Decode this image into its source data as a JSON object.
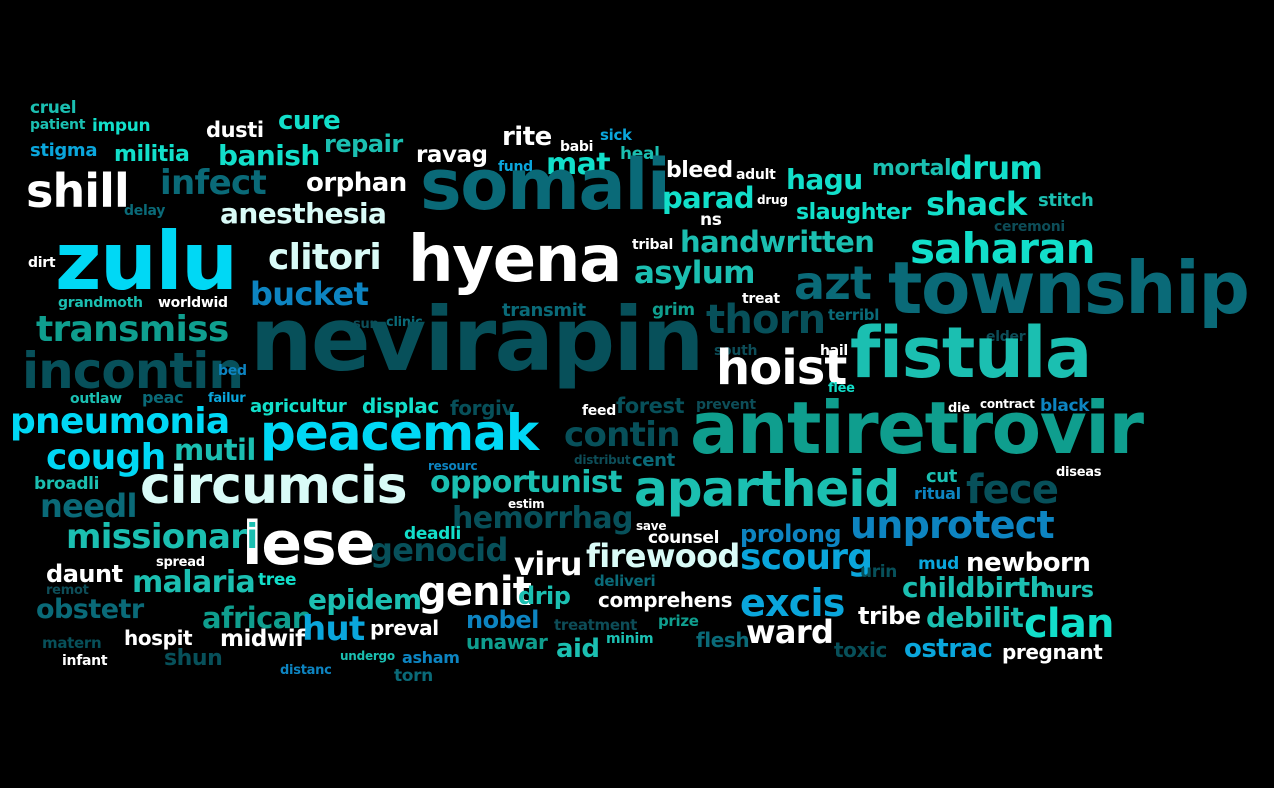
{
  "palette": {
    "background": "#000000",
    "white": "#ffffff",
    "pale": "#d9fbf7",
    "cyan": "#00d8f5",
    "sky": "#0aa6dc",
    "blue": "#0d84c1",
    "aqua": "#12dfca",
    "teal": "#1bbfb1",
    "seafoam": "#0f9e8e",
    "slate": "#0a6a78",
    "deep": "#07505a",
    "dim": "#0d4d58"
  },
  "words": [
    {
      "text": "cruel",
      "color": "teal"
    },
    {
      "text": "patient",
      "color": "teal"
    },
    {
      "text": "impun",
      "color": "aqua"
    },
    {
      "text": "stigma",
      "color": "sky"
    },
    {
      "text": "militia",
      "color": "aqua"
    },
    {
      "text": "dusti",
      "color": "white"
    },
    {
      "text": "cure",
      "color": "aqua"
    },
    {
      "text": "banish",
      "color": "aqua"
    },
    {
      "text": "repair",
      "color": "teal"
    },
    {
      "text": "ravag",
      "color": "white"
    },
    {
      "text": "rite",
      "color": "white"
    },
    {
      "text": "babi",
      "color": "white"
    },
    {
      "text": "sick",
      "color": "sky"
    },
    {
      "text": "fund",
      "color": "sky"
    },
    {
      "text": "mat",
      "color": "aqua"
    },
    {
      "text": "heal",
      "color": "teal"
    },
    {
      "text": "shill",
      "color": "white"
    },
    {
      "text": "delay",
      "color": "slate"
    },
    {
      "text": "infect",
      "color": "slate"
    },
    {
      "text": "orphan",
      "color": "white"
    },
    {
      "text": "somali",
      "color": "slate"
    },
    {
      "text": "bleed",
      "color": "white"
    },
    {
      "text": "adult",
      "color": "white"
    },
    {
      "text": "drug",
      "color": "white"
    },
    {
      "text": "hagu",
      "color": "aqua"
    },
    {
      "text": "mortal",
      "color": "teal"
    },
    {
      "text": "drum",
      "color": "aqua"
    },
    {
      "text": "parad",
      "color": "aqua"
    },
    {
      "text": "ns",
      "color": "white"
    },
    {
      "text": "slaughter",
      "color": "aqua"
    },
    {
      "text": "shack",
      "color": "aqua"
    },
    {
      "text": "stitch",
      "color": "teal"
    },
    {
      "text": "ceremoni",
      "color": "dim"
    },
    {
      "text": "anesthesia",
      "color": "pale"
    },
    {
      "text": "zulu",
      "color": "cyan"
    },
    {
      "text": "dirt",
      "color": "white"
    },
    {
      "text": "clitori",
      "color": "pale"
    },
    {
      "text": "hyena",
      "color": "white"
    },
    {
      "text": "tribal",
      "color": "white"
    },
    {
      "text": "handwritten",
      "color": "teal"
    },
    {
      "text": "saharan",
      "color": "aqua"
    },
    {
      "text": "azt",
      "color": "slate"
    },
    {
      "text": "asylum",
      "color": "teal"
    },
    {
      "text": "township",
      "color": "slate"
    },
    {
      "text": "bucket",
      "color": "blue"
    },
    {
      "text": "grandmoth",
      "color": "teal"
    },
    {
      "text": "worldwid",
      "color": "white"
    },
    {
      "text": "transmit",
      "color": "slate"
    },
    {
      "text": "grim",
      "color": "seafoam"
    },
    {
      "text": "treat",
      "color": "white"
    },
    {
      "text": "thorn",
      "color": "deep"
    },
    {
      "text": "terribl",
      "color": "slate"
    },
    {
      "text": "transmiss",
      "color": "seafoam"
    },
    {
      "text": "sun",
      "color": "dim"
    },
    {
      "text": "clinic",
      "color": "slate"
    },
    {
      "text": "nevirapin",
      "color": "deep"
    },
    {
      "text": "elder",
      "color": "dim"
    },
    {
      "text": "fistula",
      "color": "teal"
    },
    {
      "text": "south",
      "color": "dim"
    },
    {
      "text": "hail",
      "color": "white"
    },
    {
      "text": "incontin",
      "color": "deep"
    },
    {
      "text": "bed",
      "color": "blue"
    },
    {
      "text": "hoist",
      "color": "white"
    },
    {
      "text": "flee",
      "color": "aqua"
    },
    {
      "text": "outlaw",
      "color": "teal"
    },
    {
      "text": "peac",
      "color": "slate"
    },
    {
      "text": "failur",
      "color": "sky"
    },
    {
      "text": "agricultur",
      "color": "aqua"
    },
    {
      "text": "displac",
      "color": "aqua"
    },
    {
      "text": "forgiv",
      "color": "deep"
    },
    {
      "text": "feed",
      "color": "white"
    },
    {
      "text": "forest",
      "color": "deep"
    },
    {
      "text": "prevent",
      "color": "dim"
    },
    {
      "text": "die",
      "color": "white"
    },
    {
      "text": "contract",
      "color": "white"
    },
    {
      "text": "black",
      "color": "blue"
    },
    {
      "text": "pneumonia",
      "color": "cyan"
    },
    {
      "text": "peacemak",
      "color": "cyan"
    },
    {
      "text": "contin",
      "color": "deep"
    },
    {
      "text": "antiretrovir",
      "color": "seafoam"
    },
    {
      "text": "mutil",
      "color": "teal"
    },
    {
      "text": "cough",
      "color": "cyan"
    },
    {
      "text": "resourc",
      "color": "blue"
    },
    {
      "text": "distribut",
      "color": "dim"
    },
    {
      "text": "cent",
      "color": "slate"
    },
    {
      "text": "cut",
      "color": "teal"
    },
    {
      "text": "diseas",
      "color": "white"
    },
    {
      "text": "broadli",
      "color": "teal"
    },
    {
      "text": "circumcis",
      "color": "pale"
    },
    {
      "text": "opportunist",
      "color": "teal"
    },
    {
      "text": "apartheid",
      "color": "teal"
    },
    {
      "text": "ritual",
      "color": "blue"
    },
    {
      "text": "fece",
      "color": "deep"
    },
    {
      "text": "needl",
      "color": "slate"
    },
    {
      "text": "estim",
      "color": "white"
    },
    {
      "text": "hemorrhag",
      "color": "deep"
    },
    {
      "text": "save",
      "color": "white"
    },
    {
      "text": "unprotect",
      "color": "blue"
    },
    {
      "text": "deadli",
      "color": "aqua"
    },
    {
      "text": "counsel",
      "color": "white"
    },
    {
      "text": "prolong",
      "color": "blue"
    },
    {
      "text": "lese",
      "color": "white"
    },
    {
      "text": "missionari",
      "color": "teal"
    },
    {
      "text": "genocid",
      "color": "deep"
    },
    {
      "text": "firewood",
      "color": "pale"
    },
    {
      "text": "viru",
      "color": "white"
    },
    {
      "text": "scourg",
      "color": "sky"
    },
    {
      "text": "mud",
      "color": "sky"
    },
    {
      "text": "newborn",
      "color": "white"
    },
    {
      "text": "spread",
      "color": "white"
    },
    {
      "text": "urin",
      "color": "deep"
    },
    {
      "text": "daunt",
      "color": "white"
    },
    {
      "text": "malaria",
      "color": "teal"
    },
    {
      "text": "tree",
      "color": "aqua"
    },
    {
      "text": "deliveri",
      "color": "slate"
    },
    {
      "text": "childbirth",
      "color": "teal"
    },
    {
      "text": "nurs",
      "color": "teal"
    },
    {
      "text": "remot",
      "color": "dim"
    },
    {
      "text": "genit",
      "color": "white"
    },
    {
      "text": "drip",
      "color": "teal"
    },
    {
      "text": "excis",
      "color": "sky"
    },
    {
      "text": "obstetr",
      "color": "slate"
    },
    {
      "text": "epidem",
      "color": "teal"
    },
    {
      "text": "comprehens",
      "color": "white"
    },
    {
      "text": "african",
      "color": "seafoam"
    },
    {
      "text": "debilit",
      "color": "teal"
    },
    {
      "text": "tribe",
      "color": "white"
    },
    {
      "text": "clan",
      "color": "aqua"
    },
    {
      "text": "hut",
      "color": "sky"
    },
    {
      "text": "preval",
      "color": "white"
    },
    {
      "text": "nobel",
      "color": "blue"
    },
    {
      "text": "treatment",
      "color": "dim"
    },
    {
      "text": "ward",
      "color": "white"
    },
    {
      "text": "matern",
      "color": "deep"
    },
    {
      "text": "midwif",
      "color": "white"
    },
    {
      "text": "unawar",
      "color": "seafoam"
    },
    {
      "text": "minim",
      "color": "teal"
    },
    {
      "text": "prize",
      "color": "seafoam"
    },
    {
      "text": "hospit",
      "color": "white"
    },
    {
      "text": "aid",
      "color": "teal"
    },
    {
      "text": "flesh",
      "color": "slate"
    },
    {
      "text": "toxic",
      "color": "deep"
    },
    {
      "text": "ostrac",
      "color": "sky"
    },
    {
      "text": "pregnant",
      "color": "white"
    },
    {
      "text": "infant",
      "color": "white"
    },
    {
      "text": "shun",
      "color": "deep"
    },
    {
      "text": "distanc",
      "color": "blue"
    },
    {
      "text": "undergo",
      "color": "teal"
    },
    {
      "text": "asham",
      "color": "blue"
    },
    {
      "text": "torn",
      "color": "slate"
    }
  ]
}
